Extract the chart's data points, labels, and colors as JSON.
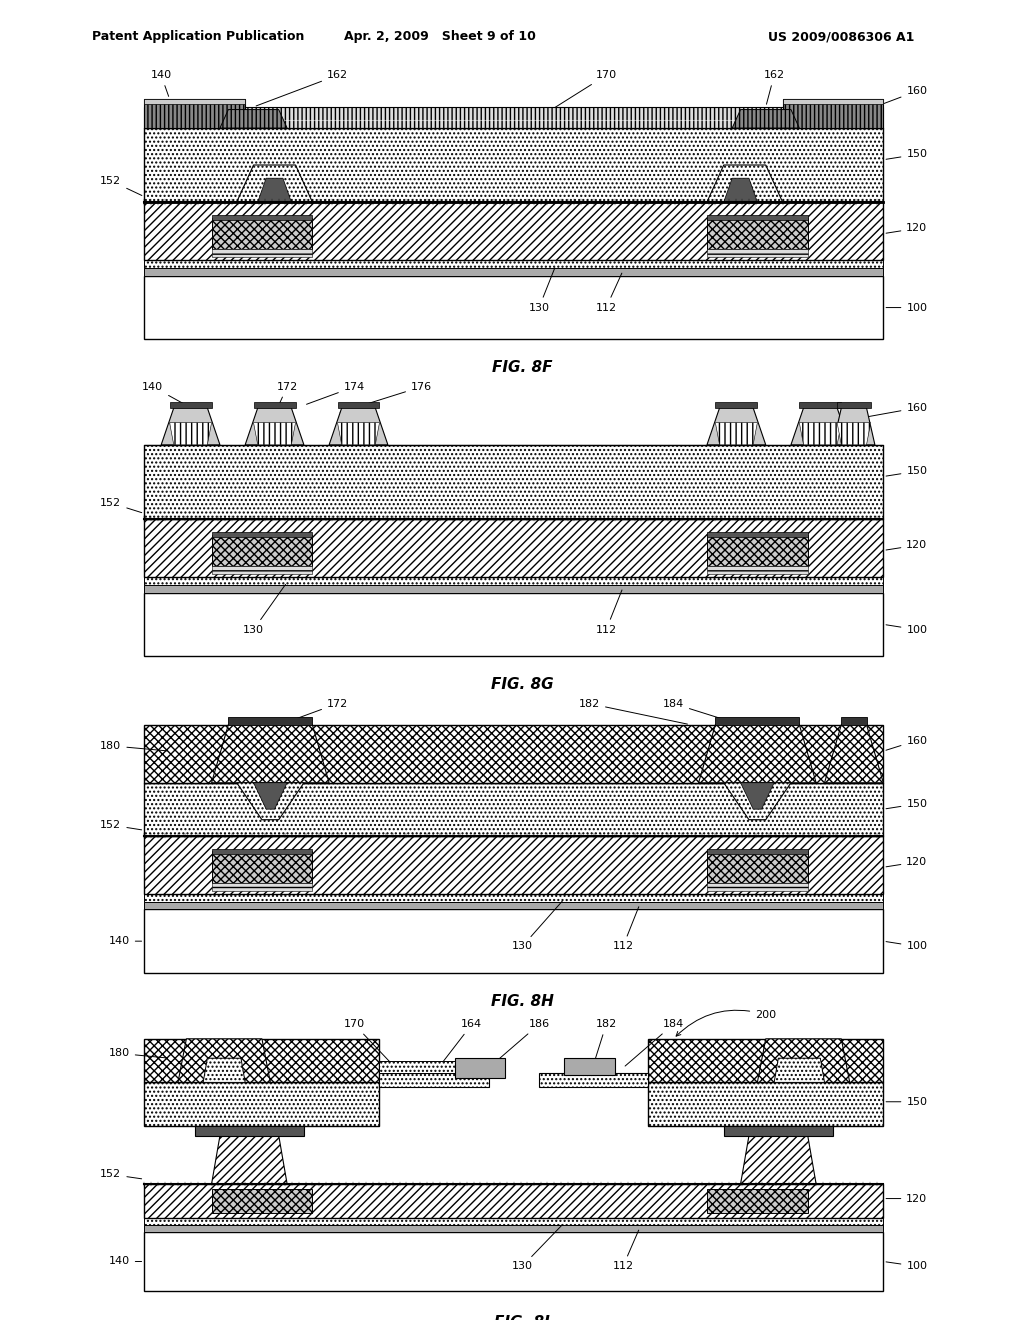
{
  "title_left": "Patent Application Publication",
  "title_center": "Apr. 2, 2009   Sheet 9 of 10",
  "title_right": "US 2009/0086306 A1",
  "bg_color": "#ffffff"
}
